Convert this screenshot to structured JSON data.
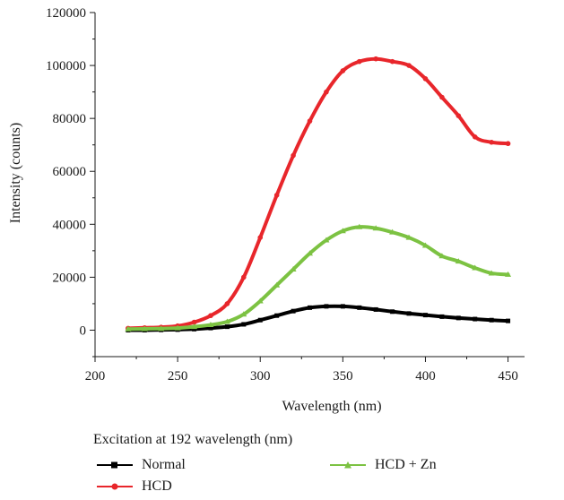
{
  "chart_data": {
    "type": "line",
    "title": "",
    "xlabel": "Wavelength (nm)",
    "ylabel": "Intensity (counts)",
    "xlim": [
      200,
      460
    ],
    "ylim": [
      -10000,
      120000
    ],
    "xticks": [
      200,
      250,
      300,
      350,
      400,
      450
    ],
    "yticks": [
      0,
      20000,
      40000,
      60000,
      80000,
      100000,
      120000
    ],
    "x": [
      220,
      230,
      240,
      250,
      260,
      270,
      280,
      290,
      300,
      310,
      320,
      330,
      340,
      350,
      360,
      370,
      380,
      390,
      400,
      410,
      420,
      430,
      440,
      450
    ],
    "series": [
      {
        "name": "Normal",
        "color": "#000000",
        "marker": "square",
        "values": [
          0,
          0,
          100,
          200,
          400,
          800,
          1300,
          2200,
          3800,
          5500,
          7200,
          8500,
          9000,
          9000,
          8500,
          7800,
          7000,
          6300,
          5700,
          5100,
          4600,
          4200,
          3800,
          3500
        ]
      },
      {
        "name": "HCD",
        "color": "#e8262b",
        "marker": "circle",
        "values": [
          700,
          900,
          1100,
          1600,
          3000,
          5500,
          10000,
          20000,
          35000,
          51000,
          66000,
          79000,
          90000,
          98000,
          101500,
          102500,
          101500,
          100000,
          95000,
          88000,
          81000,
          73000,
          71000,
          70500
        ]
      },
      {
        "name": "HCD + Zn",
        "color": "#7cc242",
        "marker": "triangle",
        "values": [
          400,
          500,
          600,
          800,
          1300,
          2000,
          3200,
          6000,
          11000,
          17000,
          23000,
          29000,
          34000,
          37500,
          39000,
          38500,
          37000,
          35000,
          32000,
          28000,
          26000,
          23500,
          21500,
          21000
        ]
      }
    ],
    "legend_title": "Excitation at 192 wavelength (nm)",
    "legend_position": "bottom",
    "grid": false
  }
}
